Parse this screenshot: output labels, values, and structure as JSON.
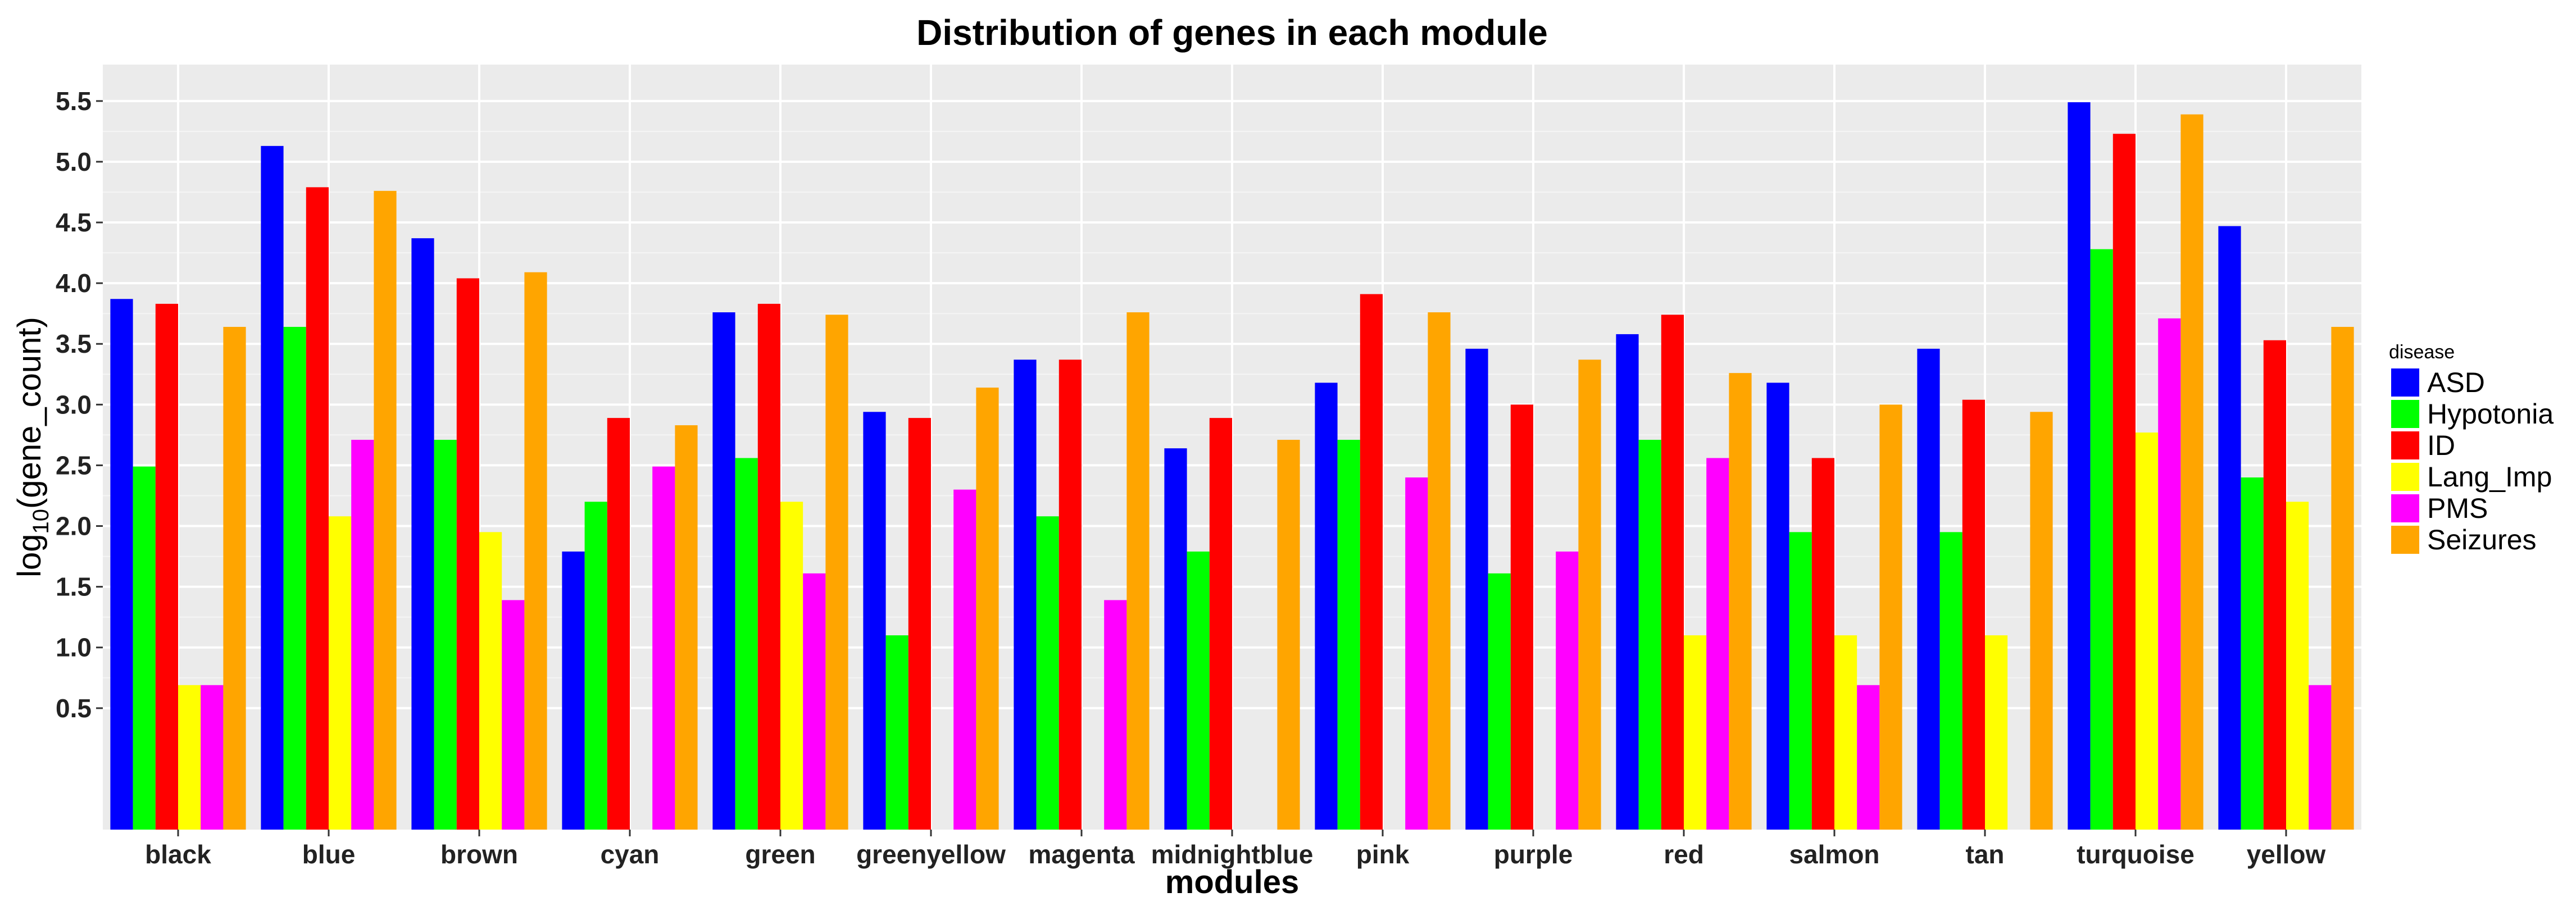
{
  "chart_data": {
    "type": "bar",
    "title": "Distribution of genes in each module",
    "xlabel": "modules",
    "ylabel_main": "log",
    "ylabel_sub": "10",
    "ylabel_rest": "(gene_count)",
    "ylim": [
      -0.5,
      5.8
    ],
    "yticks": [
      0.5,
      1.0,
      1.5,
      2.0,
      2.5,
      3.0,
      3.5,
      4.0,
      4.5,
      5.0,
      5.5
    ],
    "ytick_labels": [
      "0.5",
      "1.0",
      "1.5",
      "2.0",
      "2.5",
      "3.0",
      "3.5",
      "4.0",
      "4.5",
      "5.0",
      "5.5"
    ],
    "baseline": -0.5,
    "legend_title": "disease",
    "legend_position": "right",
    "grid": true,
    "categories": [
      "black",
      "blue",
      "brown",
      "cyan",
      "green",
      "greenyellow",
      "magenta",
      "midnightblue",
      "pink",
      "purple",
      "red",
      "salmon",
      "tan",
      "turquoise",
      "yellow"
    ],
    "series": [
      {
        "name": "ASD",
        "color": "#0000ff",
        "values": [
          3.87,
          5.13,
          4.37,
          1.79,
          3.76,
          2.94,
          3.37,
          2.64,
          3.18,
          3.46,
          3.58,
          3.18,
          3.46,
          5.49,
          4.47
        ]
      },
      {
        "name": "Hypotonia",
        "color": "#00ff00",
        "values": [
          2.49,
          3.64,
          2.71,
          2.2,
          2.56,
          1.1,
          2.08,
          1.79,
          2.71,
          1.61,
          2.71,
          1.95,
          1.95,
          4.28,
          2.4
        ]
      },
      {
        "name": "ID",
        "color": "#ff0000",
        "values": [
          3.83,
          4.79,
          4.04,
          2.89,
          3.83,
          2.89,
          3.37,
          2.89,
          3.91,
          3.0,
          3.74,
          2.56,
          3.04,
          5.23,
          3.53
        ]
      },
      {
        "name": "Lang_Imp",
        "color": "#ffff00",
        "values": [
          0.69,
          2.08,
          1.95,
          null,
          2.2,
          null,
          null,
          null,
          null,
          null,
          1.1,
          1.1,
          1.1,
          2.77,
          2.2
        ]
      },
      {
        "name": "PMS",
        "color": "#ff00ff",
        "values": [
          0.69,
          2.71,
          1.39,
          2.49,
          1.61,
          2.3,
          1.39,
          null,
          2.4,
          1.79,
          2.56,
          0.69,
          null,
          3.71,
          0.69
        ]
      },
      {
        "name": "Seizures",
        "color": "#ffa500",
        "values": [
          3.64,
          4.76,
          4.09,
          2.83,
          3.74,
          3.14,
          3.76,
          2.71,
          3.76,
          3.37,
          3.26,
          3.0,
          2.94,
          5.39,
          3.64
        ]
      }
    ]
  }
}
